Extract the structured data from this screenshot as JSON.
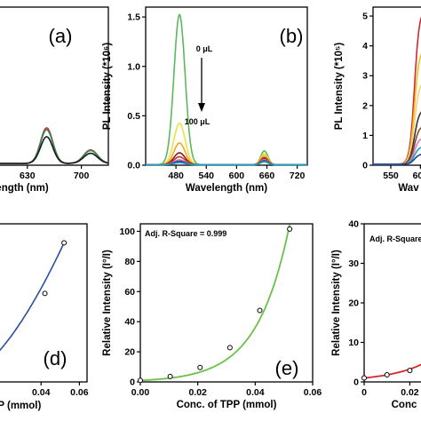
{
  "chart_data": [
    {
      "panel": "(a)",
      "type": "line",
      "xlabel": "ength (nm)",
      "xticks": [
        "630",
        "700"
      ],
      "series_colors": [
        "#d62728",
        "#2e8b57",
        "#1a1a1a"
      ]
    },
    {
      "panel": "(b)",
      "type": "line",
      "xlabel": "Wavelength (nm)",
      "ylabel": "PL Intensity (*10⁶)",
      "xlim": [
        420,
        740
      ],
      "ylim": [
        0,
        1.6
      ],
      "xticks": [
        "480",
        "540",
        "600",
        "660",
        "720"
      ],
      "yticks": [
        "0.0",
        "0.5",
        "1.0",
        "1.5"
      ],
      "annotation_top": "0 μL",
      "annotation_bottom": "100 μL",
      "series": [
        {
          "color": "#5cb85c",
          "peak1": 1.52,
          "peak2": 0.14
        },
        {
          "color": "#f0e040",
          "peak1": 0.42,
          "peak2": 0.11
        },
        {
          "color": "#f5a623",
          "peak1": 0.22,
          "peak2": 0.09
        },
        {
          "color": "#8b1a1a",
          "peak1": 0.12,
          "peak2": 0.07
        },
        {
          "color": "#c0392b",
          "peak1": 0.08,
          "peak2": 0.06
        },
        {
          "color": "#e377c2",
          "peak1": 0.05,
          "peak2": 0.05
        },
        {
          "color": "#1f3f8f",
          "peak1": 0.035,
          "peak2": 0.04
        },
        {
          "color": "#17a2b8",
          "peak1": 0.02,
          "peak2": 0.03
        }
      ]
    },
    {
      "panel": "(c)",
      "type": "line",
      "xlabel": "Wav",
      "ylabel": "PL Intensity (*10⁵)",
      "xlim": [
        520,
        640
      ],
      "ylim": [
        0,
        5.3
      ],
      "xticks": [
        "550",
        "600"
      ],
      "yticks": [
        "0",
        "1",
        "2",
        "3",
        "4",
        "5"
      ],
      "series": [
        {
          "color": "#d62728",
          "peak": 5.2
        },
        {
          "color": "#f0c020",
          "peak": 3.9
        },
        {
          "color": "#f5d080",
          "peak": 2.8
        },
        {
          "color": "#333333",
          "peak": 1.85
        },
        {
          "color": "#8b4a2a",
          "peak": 1.3
        },
        {
          "color": "#e377c2",
          "peak": 0.9
        },
        {
          "color": "#17a2b8",
          "peak": 0.6
        },
        {
          "color": "#1f3f8f",
          "peak": 0.35
        }
      ]
    },
    {
      "panel": "(d)",
      "type": "scatter",
      "xlabel": "PP (mmol)",
      "xticks": [
        "0.04",
        "0.06"
      ],
      "x": [
        0.042,
        0.052
      ],
      "y": [
        0.56,
        0.88
      ]
    },
    {
      "panel": "(e)",
      "type": "scatter",
      "xlabel": "Conc. of TPP (mmol)",
      "ylabel": "Relative Intensity (I°/I)",
      "xlim": [
        0,
        0.06
      ],
      "ylim": [
        0,
        105
      ],
      "xticks": [
        "0.00",
        "0.02",
        "0.04",
        "0.06"
      ],
      "yticks": [
        "0",
        "20",
        "40",
        "60",
        "80",
        "100"
      ],
      "annotation": "Adj. R-Square = 0.999",
      "x": [
        0.0,
        0.0104,
        0.0208,
        0.0312,
        0.0416,
        0.052
      ],
      "y": [
        1.0,
        3.6,
        9.6,
        22.8,
        47.5,
        101.5
      ],
      "fit_color": "#6cc04a"
    },
    {
      "panel": "(f)",
      "type": "scatter",
      "xlabel": "Conc",
      "ylabel": "Relative Intensity (I°/I)",
      "xlim": [
        0,
        0.035
      ],
      "ylim": [
        0,
        40
      ],
      "xticks": [
        "0",
        "0.02"
      ],
      "yticks": [
        "0",
        "10",
        "20",
        "30",
        "40"
      ],
      "annotation": "Adj. R-Square",
      "x": [
        0.0,
        0.01,
        0.02
      ],
      "y": [
        1.0,
        1.8,
        2.9
      ],
      "fit_color": "#d62728"
    }
  ]
}
